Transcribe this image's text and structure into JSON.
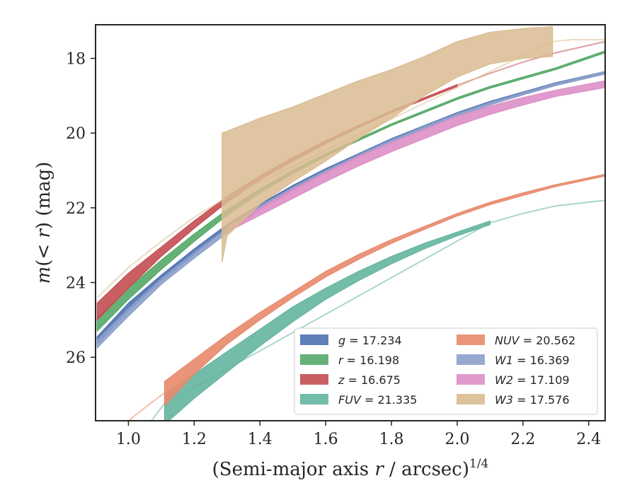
{
  "chart_data": {
    "type": "area",
    "xlabel": "(Semi-major axis r / arcsec)^{1/4}",
    "ylabel": "m(< r) (mag)",
    "xlim": [
      0.9,
      2.45
    ],
    "ylim": [
      27.7,
      17.1
    ],
    "y_inverted": true,
    "xticks": [
      "1.0",
      "1.2",
      "1.4",
      "1.6",
      "1.8",
      "2.0",
      "2.2",
      "2.4"
    ],
    "yticks": [
      "18",
      "20",
      "22",
      "24",
      "26"
    ],
    "xtick_values": [
      1.0,
      1.2,
      1.4,
      1.6,
      1.8,
      2.0,
      2.2,
      2.4
    ],
    "ytick_values": [
      18,
      20,
      22,
      24,
      26
    ],
    "grid": false,
    "legend_position": "lower-right",
    "series": [
      {
        "name": "g = 17.234",
        "label_var": "g",
        "label_val": "17.234",
        "color": "#4c72b0",
        "band": {
          "x": [
            0.905,
            1.0,
            1.1,
            1.2,
            1.3,
            1.4,
            1.5,
            1.6,
            1.7,
            1.8,
            1.9,
            2.0,
            2.1,
            2.2,
            2.3,
            2.45
          ],
          "y_upper": [
            25.45,
            24.55,
            23.8,
            23.1,
            22.45,
            21.9,
            21.4,
            20.95,
            20.55,
            20.15,
            19.8,
            19.45,
            19.15,
            18.9,
            18.65,
            18.35
          ],
          "y_lower": [
            25.65,
            24.75,
            23.95,
            23.25,
            22.55,
            21.98,
            21.48,
            21.02,
            20.6,
            20.2,
            19.85,
            19.5,
            19.2,
            18.95,
            18.7,
            18.4
          ]
        },
        "tail": {
          "x": [],
          "y": []
        }
      },
      {
        "name": "r = 16.198",
        "label_var": "r",
        "label_val": "16.198",
        "color": "#55a868",
        "band": {
          "x": [
            0.905,
            1.0,
            1.1,
            1.2,
            1.3,
            1.4,
            1.5,
            1.6,
            1.7,
            1.8,
            1.9,
            2.0,
            2.1,
            2.2,
            2.3,
            2.45
          ],
          "y_upper": [
            24.95,
            24.15,
            23.4,
            22.7,
            22.05,
            21.5,
            21.0,
            20.55,
            20.15,
            19.75,
            19.4,
            19.05,
            18.75,
            18.5,
            18.25,
            17.8
          ],
          "y_lower": [
            25.3,
            24.45,
            23.65,
            22.9,
            22.2,
            21.6,
            21.08,
            20.62,
            20.2,
            19.8,
            19.45,
            19.1,
            18.8,
            18.55,
            18.3,
            17.85
          ]
        },
        "tail": {
          "x": [],
          "y": []
        }
      },
      {
        "name": "z = 16.675",
        "label_var": "z",
        "label_val": "16.675",
        "color": "#c44e52",
        "band": {
          "x": [
            0.905,
            1.0,
            1.1,
            1.2,
            1.3,
            1.4,
            1.5,
            1.6,
            1.7,
            1.8,
            1.9,
            2.0
          ],
          "y_upper": [
            24.55,
            23.75,
            23.05,
            22.35,
            21.7,
            21.15,
            20.65,
            20.2,
            19.8,
            19.4,
            19.05,
            18.7
          ],
          "y_lower": [
            25.0,
            24.15,
            23.3,
            22.55,
            21.85,
            21.25,
            20.75,
            20.28,
            19.85,
            19.45,
            19.1,
            18.75
          ]
        },
        "tail": {
          "x": [
            2.0,
            2.1,
            2.2,
            2.3,
            2.45
          ],
          "y": [
            18.72,
            18.4,
            18.1,
            17.85,
            17.55
          ]
        }
      },
      {
        "name": "FUV = 21.335",
        "label_var": "FUV",
        "label_val": "21.335",
        "color": "#64b5a0",
        "band": {
          "x": [
            1.11,
            1.2,
            1.3,
            1.4,
            1.5,
            1.6,
            1.7,
            1.8,
            1.9,
            2.0,
            2.1
          ],
          "y_upper": [
            27.0,
            26.45,
            25.85,
            25.25,
            24.65,
            24.15,
            23.7,
            23.3,
            22.95,
            22.65,
            22.35
          ],
          "y_lower": [
            27.8,
            27.1,
            26.4,
            25.7,
            25.05,
            24.45,
            23.95,
            23.5,
            23.1,
            22.75,
            22.45
          ]
        },
        "tail": {
          "x": [
            1.07,
            1.1,
            1.11,
            2.1,
            2.2,
            2.3,
            2.45
          ],
          "y": [
            27.7,
            27.35,
            27.25,
            22.4,
            22.15,
            21.95,
            21.8
          ]
        }
      },
      {
        "name": "NUV = 20.562",
        "label_var": "NUV",
        "label_val": "20.562",
        "color": "#e8896b",
        "band": {
          "x": [
            1.11,
            1.2,
            1.3,
            1.4,
            1.5,
            1.6,
            1.7,
            1.8,
            1.9,
            2.0,
            2.1,
            2.2,
            2.3,
            2.45
          ],
          "y_upper": [
            26.65,
            26.05,
            25.4,
            24.8,
            24.25,
            23.7,
            23.25,
            22.85,
            22.5,
            22.15,
            21.85,
            21.6,
            21.38,
            21.1
          ],
          "y_lower": [
            27.3,
            26.45,
            25.65,
            25.0,
            24.4,
            23.85,
            23.38,
            22.95,
            22.58,
            22.22,
            21.92,
            21.67,
            21.43,
            21.15
          ]
        },
        "tail": {
          "x": [
            1.0,
            1.05,
            1.11
          ],
          "y": [
            27.7,
            27.35,
            26.95
          ]
        }
      },
      {
        "name": "W1 = 16.369",
        "label_var": "W1",
        "label_val": "16.369",
        "color": "#8da0cb",
        "band": {
          "x": [
            0.905,
            1.0,
            1.1,
            1.2,
            1.3,
            1.4,
            1.5,
            1.6,
            1.7,
            1.8,
            1.9,
            2.0,
            2.1,
            2.2,
            2.3,
            2.45
          ],
          "y_upper": [
            25.55,
            24.7,
            23.9,
            23.2,
            22.55,
            21.95,
            21.45,
            21.0,
            20.58,
            20.18,
            19.82,
            19.48,
            19.18,
            18.92,
            18.67,
            18.35
          ],
          "y_lower": [
            25.75,
            24.9,
            24.05,
            23.35,
            22.68,
            22.05,
            21.55,
            21.08,
            20.65,
            20.25,
            19.88,
            19.55,
            19.25,
            18.98,
            18.73,
            18.42
          ]
        },
        "tail": {
          "x": [],
          "y": []
        }
      },
      {
        "name": "W2 = 17.109",
        "label_var": "W2",
        "label_val": "17.109",
        "color": "#dd8fc6",
        "band": {
          "x": [
            1.3,
            1.4,
            1.5,
            1.6,
            1.7,
            1.8,
            1.9,
            2.0,
            2.1,
            2.2,
            2.3,
            2.45
          ],
          "y_upper": [
            22.5,
            22.0,
            21.5,
            21.05,
            20.62,
            20.25,
            19.9,
            19.55,
            19.28,
            19.05,
            18.85,
            18.6
          ],
          "y_lower": [
            22.65,
            22.2,
            21.75,
            21.3,
            20.88,
            20.5,
            20.15,
            19.8,
            19.5,
            19.25,
            19.02,
            18.78
          ]
        },
        "tail": {
          "x": [],
          "y": []
        }
      },
      {
        "name": "W3 = 17.576",
        "label_var": "W3",
        "label_val": "17.576",
        "color": "#d9bb90",
        "band": {
          "x": [
            1.285,
            1.3,
            1.4,
            1.5,
            1.6,
            1.7,
            1.8,
            1.9,
            2.0,
            2.1,
            2.2,
            2.29
          ],
          "y_upper": [
            20.0,
            19.95,
            19.6,
            19.3,
            18.95,
            18.6,
            18.3,
            17.95,
            17.55,
            17.3,
            17.2,
            17.15
          ],
          "y_lower": [
            23.45,
            22.75,
            21.9,
            21.3,
            20.75,
            20.15,
            19.6,
            19.0,
            18.5,
            18.15,
            18.0,
            17.95
          ]
        },
        "tail": {
          "x": [
            0.905,
            1.0,
            1.1,
            1.2,
            1.285,
            2.29,
            2.35,
            2.45
          ],
          "y": [
            24.4,
            23.6,
            22.9,
            22.25,
            21.8,
            17.55,
            17.5,
            17.5
          ]
        }
      }
    ],
    "legend_order": [
      0,
      4,
      1,
      5,
      2,
      6,
      3,
      7
    ]
  }
}
